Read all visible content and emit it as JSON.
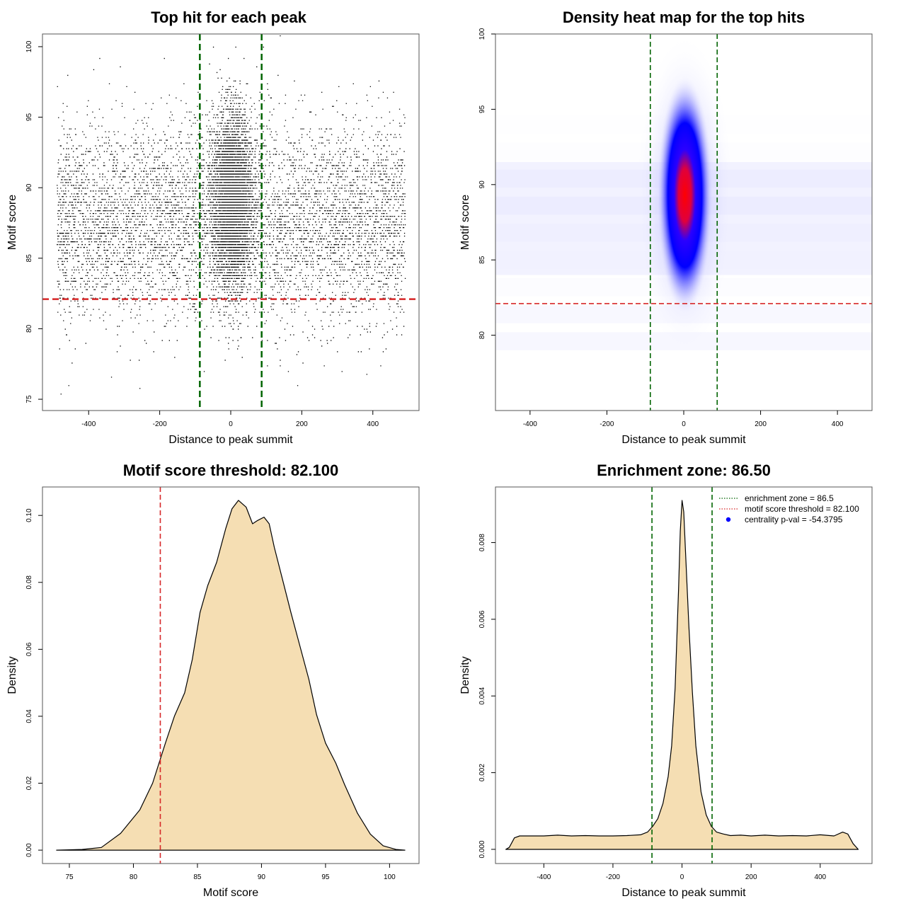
{
  "chart_data": [
    {
      "type": "scatter",
      "title": "Top hit for each peak",
      "xlabel": "Distance to peak summit",
      "ylabel": "Motif score",
      "xlim": [
        -530,
        530
      ],
      "ylim": [
        74.2,
        100.9
      ],
      "xticks": [
        -400,
        -200,
        0,
        200,
        400
      ],
      "yticks": [
        75,
        80,
        85,
        90,
        95,
        100
      ],
      "vlines": [
        -87,
        87
      ],
      "hline": 82.1,
      "colors": {
        "points": "#000000",
        "vline": "#006400",
        "hline": "#d62728"
      },
      "background_uniform": {
        "n": 6500,
        "x": [
          -490,
          490
        ],
        "y_mean": 87.6,
        "y_sd": 3.5
      },
      "central_cluster": {
        "n": 7500,
        "x_mean": 3,
        "x_sd": 27,
        "y_mean": 89.3,
        "y_sd": 3.0
      }
    },
    {
      "type": "heatmap",
      "title": "Density heat map for the top hits",
      "xlabel": "Distance to peak summit",
      "ylabel": "Motif score",
      "xlim": [
        -490,
        490
      ],
      "ylim": [
        75,
        100
      ],
      "xticks": [
        -400,
        -200,
        0,
        200,
        400
      ],
      "yticks": [
        80,
        85,
        90,
        95,
        100
      ],
      "vlines": [
        -87,
        87
      ],
      "hline": 82.1,
      "colors": {
        "low": "#ffffff",
        "mid": "#0000ff",
        "high": "#ff0000",
        "vline": "#006400",
        "hline": "#d62728"
      },
      "peak": {
        "x": 3,
        "y": 89.3
      }
    },
    {
      "type": "area",
      "title": "Motif score threshold: 82.100",
      "xlabel": "Motif score",
      "ylabel": "Density",
      "xlim": [
        72.9,
        102.3
      ],
      "ylim": [
        -0.004,
        0.1085
      ],
      "xticks": [
        75,
        80,
        85,
        90,
        95,
        100
      ],
      "yticks": [
        0.0,
        0.02,
        0.04,
        0.06,
        0.08,
        0.1
      ],
      "ytick_labels": [
        "0.00",
        "0.02",
        "0.04",
        "0.06",
        "0.08",
        "0.10"
      ],
      "vline": 82.1,
      "colors": {
        "fill": "#f5deb3",
        "line": "#000000",
        "vline": "#d62728"
      },
      "x": [
        74.0,
        76.0,
        77.5,
        79.0,
        80.5,
        81.5,
        82.5,
        83.2,
        84.0,
        84.6,
        85.2,
        85.8,
        86.5,
        87.2,
        87.7,
        88.2,
        88.8,
        89.3,
        89.7,
        90.2,
        90.6,
        91.0,
        91.7,
        92.3,
        93.0,
        93.7,
        94.3,
        95.0,
        95.8,
        96.5,
        97.5,
        98.5,
        99.5,
        100.5,
        101.2
      ],
      "y": [
        0.0,
        0.0002,
        0.0008,
        0.005,
        0.012,
        0.02,
        0.032,
        0.04,
        0.047,
        0.057,
        0.071,
        0.079,
        0.086,
        0.096,
        0.102,
        0.1045,
        0.1025,
        0.0975,
        0.0985,
        0.0995,
        0.0975,
        0.0905,
        0.08,
        0.071,
        0.061,
        0.051,
        0.0405,
        0.032,
        0.026,
        0.0195,
        0.011,
        0.0048,
        0.0013,
        0.0002,
        0.0
      ]
    },
    {
      "type": "area",
      "title": "Enrichment zone: 86.50",
      "xlabel": "Distance to peak summit",
      "ylabel": "Density",
      "xlim": [
        -540,
        550
      ],
      "ylim": [
        -0.00037,
        0.00945
      ],
      "xticks": [
        -400,
        -200,
        0,
        200,
        400
      ],
      "yticks": [
        0.0,
        0.002,
        0.004,
        0.006,
        0.008
      ],
      "ytick_labels": [
        "0.000",
        "0.002",
        "0.004",
        "0.006",
        "0.008"
      ],
      "vlines": [
        -87,
        87
      ],
      "colors": {
        "fill": "#f5deb3",
        "line": "#000000",
        "vline": "#006400"
      },
      "x": [
        -510,
        -500,
        -485,
        -470,
        -440,
        -400,
        -360,
        -320,
        -280,
        -240,
        -200,
        -160,
        -120,
        -100,
        -85,
        -70,
        -55,
        -40,
        -30,
        -20,
        -10,
        -5,
        0,
        5,
        10,
        20,
        30,
        40,
        55,
        70,
        85,
        100,
        120,
        140,
        170,
        200,
        240,
        280,
        320,
        360,
        400,
        440,
        465,
        480,
        495,
        510
      ],
      "y": [
        0.0,
        5e-05,
        0.0003,
        0.00035,
        0.00035,
        0.00035,
        0.00037,
        0.00035,
        0.00036,
        0.00035,
        0.00035,
        0.00036,
        0.00038,
        0.00045,
        0.0006,
        0.0008,
        0.0012,
        0.0019,
        0.0027,
        0.0042,
        0.0068,
        0.0083,
        0.0091,
        0.0088,
        0.0078,
        0.0058,
        0.0041,
        0.0027,
        0.0015,
        0.0009,
        0.0006,
        0.00045,
        0.0004,
        0.00036,
        0.00037,
        0.00035,
        0.00037,
        0.00035,
        0.00036,
        0.00035,
        0.00038,
        0.00035,
        0.00045,
        0.0004,
        0.00015,
        0.0
      ]
    }
  ],
  "legend": {
    "placement": "top-right",
    "items": [
      {
        "label": "enrichment zone = 86.5",
        "color": "#006400",
        "kind": "dotted-line"
      },
      {
        "label": "motif score threshold = 82.100",
        "color": "#d62728",
        "kind": "dotted-line"
      },
      {
        "label": "centrality p-val = -54.3795",
        "color": "#0000ff",
        "kind": "point"
      }
    ]
  }
}
